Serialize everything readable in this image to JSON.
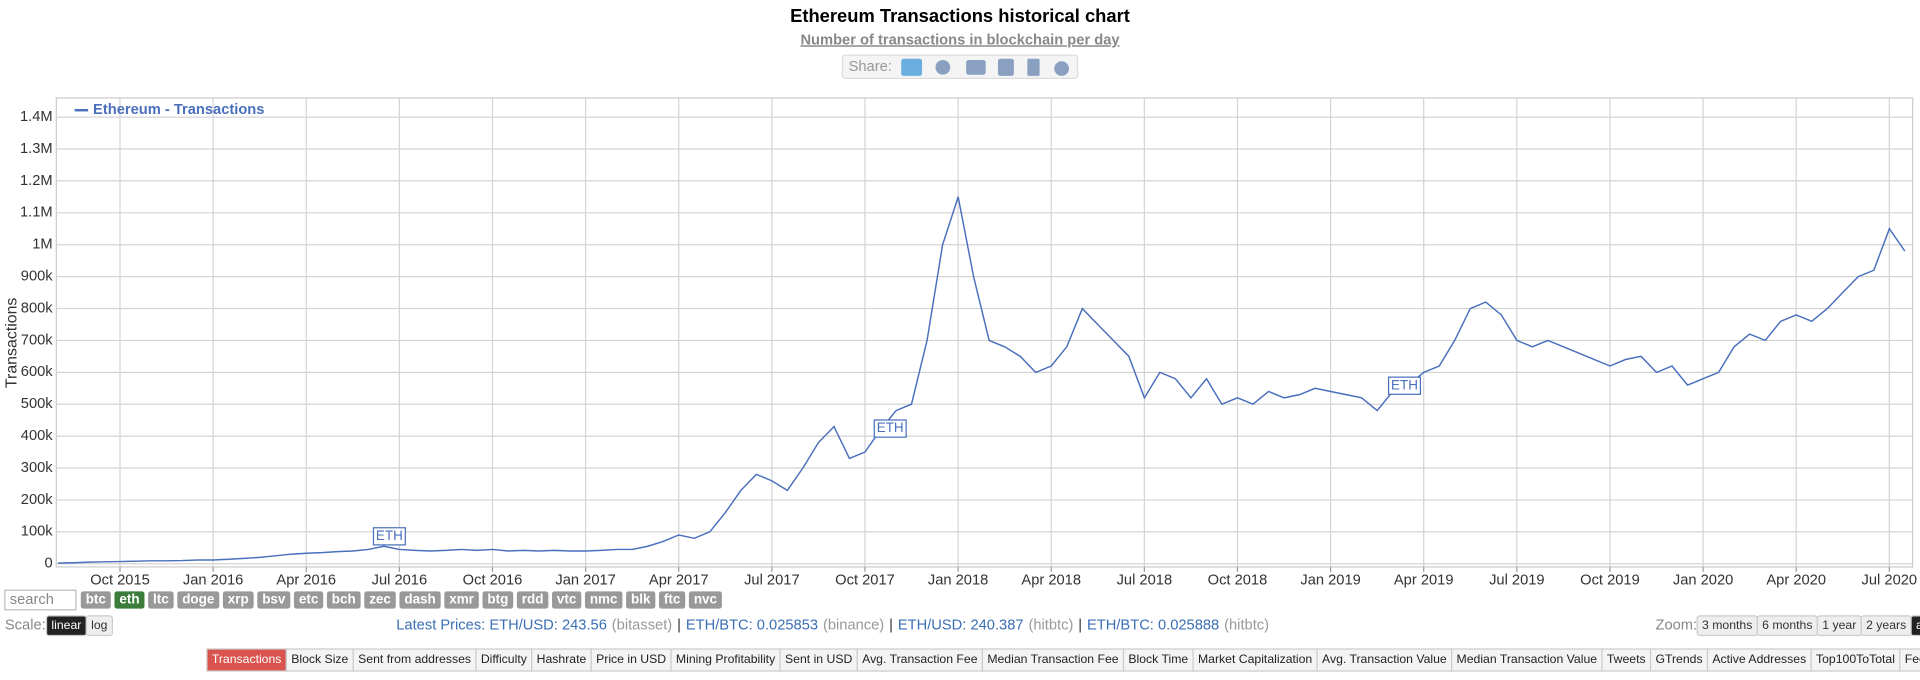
{
  "chart_data": {
    "type": "line",
    "title": "Ethereum Transactions historical chart",
    "subtitle": "Number of transactions in blockchain per day",
    "y_label": "Transactions",
    "categories": [
      null,
      null,
      null,
      null,
      "Oct 2015",
      null,
      null,
      null,
      null,
      null,
      "Jan 2016",
      null,
      null,
      null,
      null,
      null,
      "Apr 2016",
      null,
      null,
      null,
      null,
      null,
      "Jul 2016",
      null,
      null,
      null,
      null,
      null,
      "Oct 2016",
      null,
      null,
      null,
      null,
      null,
      "Jan 2017",
      null,
      null,
      null,
      null,
      null,
      "Apr 2017",
      null,
      null,
      null,
      null,
      null,
      "Jul 2017",
      null,
      null,
      null,
      null,
      null,
      "Oct 2017",
      null,
      null,
      null,
      null,
      null,
      "Jan 2018",
      null,
      null,
      null,
      null,
      null,
      "Apr 2018",
      null,
      null,
      null,
      null,
      null,
      "Jul 2018",
      null,
      null,
      null,
      null,
      null,
      "Oct 2018",
      null,
      null,
      null,
      null,
      null,
      "Jan 2019",
      null,
      null,
      null,
      null,
      null,
      "Apr 2019",
      null,
      null,
      null,
      null,
      null,
      "Jul 2019",
      null,
      null,
      null,
      null,
      null,
      "Oct 2019",
      null,
      null,
      null,
      null,
      null,
      "Jan 2020",
      null,
      null,
      null,
      null,
      null,
      "Apr 2020",
      null,
      null,
      null,
      null,
      null,
      "Jul 2020",
      null
    ],
    "series": [
      {
        "name": "Ethereum - Transactions",
        "color": "#4a6fbd",
        "values": [
          2000,
          3000,
          5000,
          6000,
          7000,
          8000,
          9000,
          9000,
          10000,
          12000,
          12000,
          14000,
          17000,
          20000,
          25000,
          30000,
          33000,
          35000,
          38000,
          40000,
          45000,
          55000,
          45000,
          42000,
          40000,
          42000,
          45000,
          42000,
          45000,
          40000,
          42000,
          40000,
          42000,
          40000,
          40000,
          42000,
          45000,
          45000,
          55000,
          70000,
          90000,
          80000,
          100000,
          160000,
          230000,
          280000,
          260000,
          230000,
          300000,
          380000,
          430000,
          330000,
          350000,
          420000,
          480000,
          500000,
          700000,
          1000000,
          1150000,
          900000,
          700000,
          680000,
          650000,
          600000,
          620000,
          680000,
          800000,
          750000,
          700000,
          650000,
          520000,
          600000,
          580000,
          520000,
          580000,
          500000,
          520000,
          500000,
          540000,
          520000,
          530000,
          550000,
          540000,
          530000,
          520000,
          480000,
          540000,
          560000,
          600000,
          620000,
          700000,
          800000,
          820000,
          780000,
          700000,
          680000,
          700000,
          680000,
          660000,
          640000,
          620000,
          640000,
          650000,
          600000,
          620000,
          560000,
          580000,
          600000,
          680000,
          720000,
          700000,
          760000,
          780000,
          760000,
          800000,
          850000,
          900000,
          920000,
          1050000,
          980000
        ]
      }
    ],
    "ylim": [
      -10000,
      1460000
    ],
    "yticks": [
      0,
      {
        "value": 100000,
        "label": "100k"
      },
      {
        "value": 200000,
        "label": "200k"
      },
      {
        "value": 300000,
        "label": "300k"
      },
      {
        "value": 400000,
        "label": "400k"
      },
      {
        "value": 500000,
        "label": "500k"
      },
      {
        "value": 600000,
        "label": "600k"
      },
      {
        "value": 700000,
        "label": "700k"
      },
      {
        "value": 800000,
        "label": "800k"
      },
      {
        "value": 900000,
        "label": "900k"
      },
      {
        "value": 1000000,
        "label": "1M"
      },
      {
        "value": 1100000,
        "label": "1.1M"
      },
      {
        "value": 1200000,
        "label": "1.2M"
      },
      {
        "value": 1300000,
        "label": "1.3M"
      },
      {
        "value": 1400000,
        "label": "1.4M"
      }
    ],
    "grid": true,
    "legend": "top-left",
    "annotations": [
      "ETH",
      "ETH",
      "ETH"
    ]
  },
  "page": {
    "share": "Share:",
    "search": "search",
    "coins": [
      "btc",
      "eth",
      "ltc",
      "doge",
      "xrp",
      "bsv",
      "etc",
      "bch",
      "zec",
      "dash",
      "xmr",
      "btg",
      "rdd",
      "vtc",
      "nmc",
      "blk",
      "ftc",
      "nvc"
    ],
    "scale": "Scale:",
    "scale_options": [
      "linear",
      "log"
    ],
    "prices": [
      {
        "text": "Latest Prices: ETH/USD: 243.56",
        "source": "(bitasset)"
      },
      {
        "text": "ETH/BTC: 0.025853",
        "source": "(binance)"
      },
      {
        "text": "ETH/USD: 240.387",
        "source": "(hitbtc)"
      },
      {
        "text": "ETH/BTC: 0.025888",
        "source": "(hitbtc)"
      }
    ],
    "separator": "|",
    "zoom": "Zoom:",
    "zoom_options": [
      "3 months",
      "6 months",
      "1 year",
      "2 years",
      "all time"
    ],
    "tabs": [
      "Transactions",
      "Block Size",
      "Sent from addresses",
      "Difficulty",
      "Hashrate",
      "Price in USD",
      "Mining Profitability",
      "Sent in USD",
      "Avg. Transaction Fee",
      "Median Transaction Fee",
      "Block Time",
      "Market Capitalization",
      "Avg. Transaction Value",
      "Median Transaction Value",
      "Tweets",
      "GTrends",
      "Active Addresses",
      "Top100ToTotal",
      "Fee in Reward"
    ]
  }
}
